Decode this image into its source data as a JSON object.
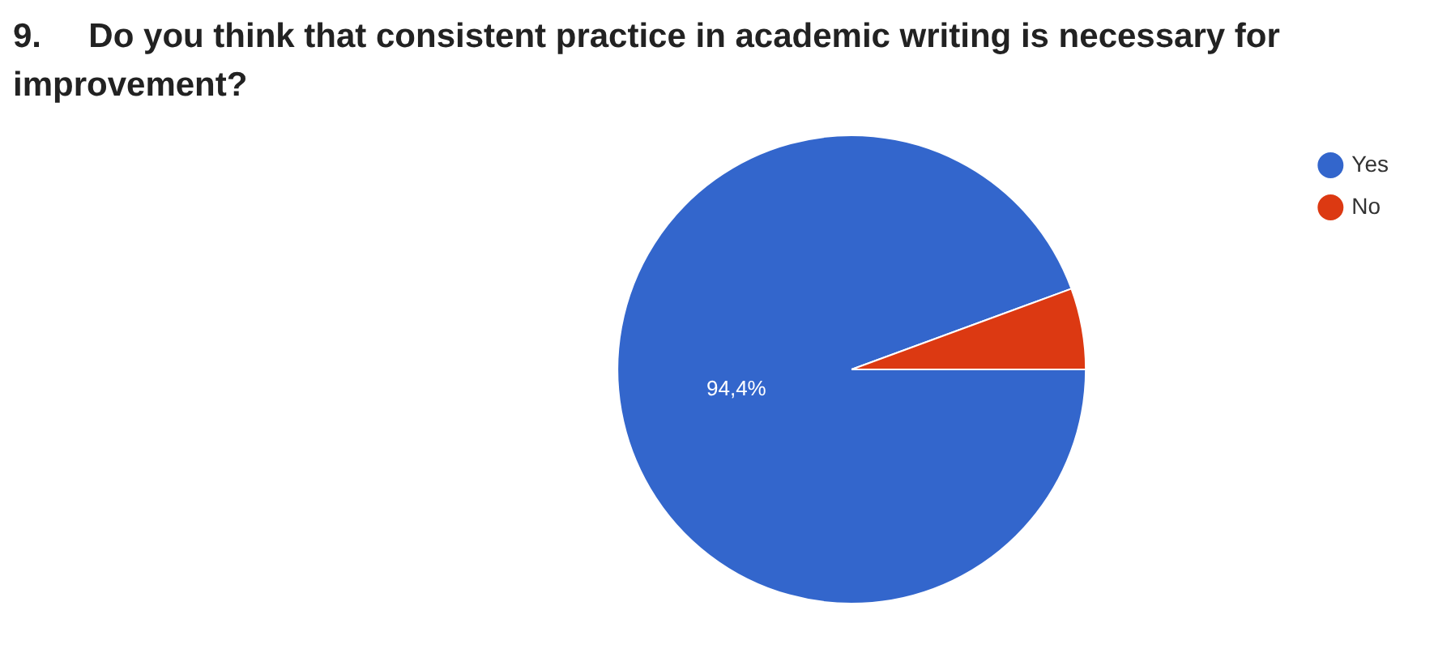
{
  "chart_data": {
    "type": "pie",
    "title": "9.     Do you think that consistent practice in academic writing is necessary for improvement?",
    "categories": [
      "Yes",
      "No"
    ],
    "values": [
      94.4,
      5.6
    ],
    "colors": [
      "#3366cc",
      "#dc3912"
    ],
    "value_labels": [
      "94,4%",
      null
    ],
    "legend": "top right"
  }
}
